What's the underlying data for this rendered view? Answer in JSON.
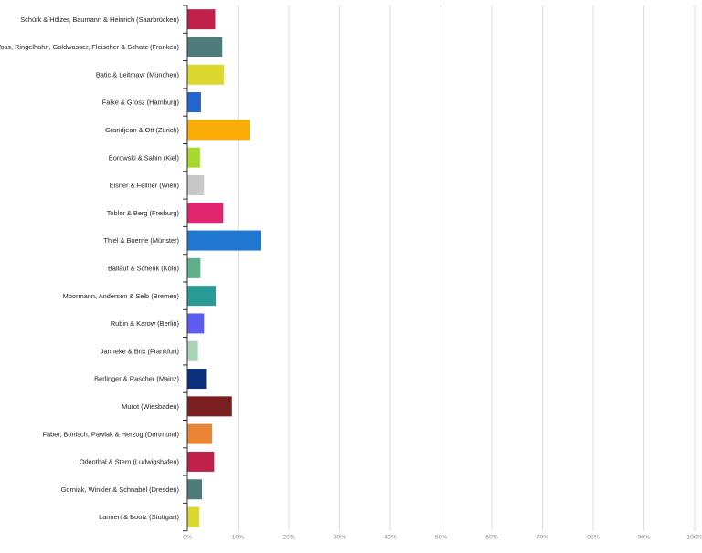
{
  "chart_data": {
    "type": "bar",
    "orientation": "horizontal",
    "categories": [
      "Schürk & Hölzer, Baumann & Heinrich (Saarbrücken)",
      "Voss, Ringelhahn, Goldwasser, Fleischer & Schatz (Franken)",
      "Batic & Leitmayr (München)",
      "Falke & Grosz (Hamburg)",
      "Grandjean & Ott (Zürich)",
      "Borowski & Sahin (Kiel)",
      "Eisner & Fellner (Wien)",
      "Tobler & Berg (Freiburg)",
      "Thiel & Boerne (Münster)",
      "Ballauf & Schenk (Köln)",
      "Moormann, Andersen & Selb (Bremen)",
      "Rubin & Karow (Berlin)",
      "Janneke & Brix (Frankfurt)",
      "Berlinger & Rascher (Mainz)",
      "Murot (Wiesbaden)",
      "Faber, Bönisch, Pawlak & Herzog (Dortmund)",
      "Odenthal & Stern (Ludwigshafen)",
      "Gorniak, Winkler & Schnabel (Dresden)",
      "Lannert & Bootz (Stuttgart)"
    ],
    "values": [
      5.4,
      6.8,
      7.1,
      2.6,
      12.2,
      2.4,
      3.2,
      7.0,
      14.4,
      2.5,
      5.5,
      3.2,
      2.0,
      3.6,
      8.7,
      4.8,
      5.2,
      2.8,
      2.3
    ],
    "colors": [
      "#c0214a",
      "#4e7b7c",
      "#dbd930",
      "#2366d1",
      "#fbab05",
      "#a6d82e",
      "#c8c8c8",
      "#e0256e",
      "#1f77d2",
      "#5fae8c",
      "#2a9a95",
      "#5c5cf0",
      "#a9d3b5",
      "#0b2f7a",
      "#7a1f1f",
      "#ea8534",
      "#c0214a",
      "#4e7b7c",
      "#dbd930"
    ],
    "x_ticks": [
      "0%",
      "10%",
      "20%",
      "30%",
      "40%",
      "50%",
      "60%",
      "70%",
      "80%",
      "90%",
      "100%"
    ],
    "xlim": [
      0,
      100
    ],
    "grid": true,
    "legend": "none",
    "title": "",
    "xlabel": "",
    "ylabel": ""
  }
}
